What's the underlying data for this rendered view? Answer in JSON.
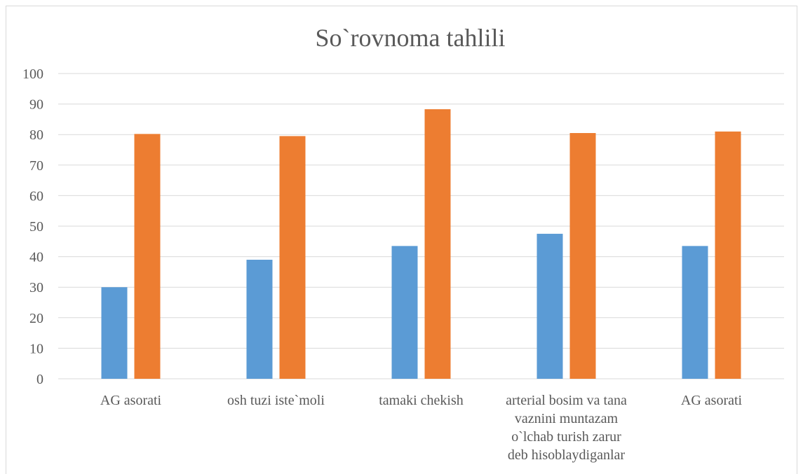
{
  "chart_data": {
    "type": "bar",
    "title": "So`rovnoma tahlili",
    "categories": [
      "AG asorati",
      "osh tuzi iste`moli",
      "tamaki chekish",
      "arterial bosim va tana vaznini muntazam o`lchab turish zarur deb hisoblaydiganlar",
      "AG asorati"
    ],
    "category_lines": [
      [
        "AG asorati"
      ],
      [
        "osh tuzi iste`moli"
      ],
      [
        "tamaki chekish"
      ],
      [
        "arterial bosim va tana",
        "vaznini muntazam",
        "o`lchab turish zarur",
        "deb hisoblaydiganlar"
      ],
      [
        "AG asorati"
      ]
    ],
    "series": [
      {
        "values": [
          30,
          39,
          43.5,
          47.5,
          43.5
        ],
        "color": "#5b9bd5"
      },
      {
        "values": [
          80.2,
          79.5,
          88.3,
          80.5,
          81
        ],
        "color": "#ed7d31"
      }
    ],
    "ylim": [
      0,
      100
    ],
    "yticks": [
      0,
      10,
      20,
      30,
      40,
      50,
      60,
      70,
      80,
      90,
      100
    ],
    "xlabel": "",
    "ylabel": "",
    "grid": true,
    "legend": "none",
    "gridline_color": "#d9d9d9"
  }
}
